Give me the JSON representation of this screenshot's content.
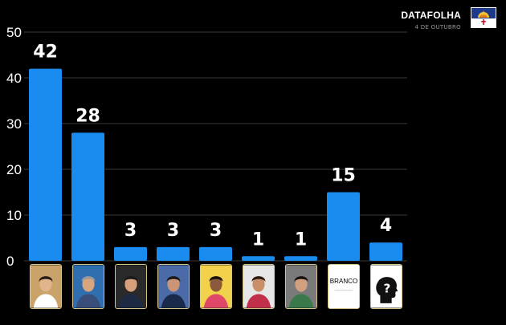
{
  "header": {
    "brand": "DATAFOLHA",
    "date": "4 DE OUTUBRO"
  },
  "flag_icon": "pernambuco-flag",
  "colors": {
    "background": "#000000",
    "bar": "#1a8cf0",
    "grid": "#3a3a3a",
    "text": "#ffffff"
  },
  "chart_data": {
    "type": "bar",
    "categories": [
      "candidate-1",
      "candidate-2",
      "candidate-3",
      "candidate-4",
      "candidate-5",
      "candidate-6",
      "candidate-7",
      "BRANCO",
      "?"
    ],
    "values": [
      42,
      28,
      3,
      3,
      3,
      1,
      1,
      15,
      4
    ],
    "data_labels": [
      "42",
      "28",
      "3",
      "3",
      "3",
      "1",
      "1",
      "15",
      "4"
    ],
    "yticks": [
      "0",
      "10",
      "20",
      "30",
      "40",
      "50"
    ],
    "ylim": [
      0,
      50
    ],
    "grid": true,
    "title": "",
    "xlabel": "",
    "ylabel": ""
  },
  "thumbnails": [
    {
      "kind": "photo",
      "icon": "candidate-photo-icon",
      "bg": "#c9a36a",
      "skin": "#e2b48c",
      "hair": "#2a2018",
      "shirt": "#ffffff"
    },
    {
      "kind": "photo",
      "icon": "candidate-photo-icon",
      "bg": "#2f6fb0",
      "skin": "#d9a57e",
      "hair": "#9a9a9a",
      "shirt": "#3a4e7a"
    },
    {
      "kind": "photo",
      "icon": "candidate-photo-icon",
      "bg": "#2a2a2a",
      "skin": "#d7a07a",
      "hair": "#1a1a1a",
      "shirt": "#1e2a44"
    },
    {
      "kind": "photo",
      "icon": "candidate-photo-icon",
      "bg": "#4a6aa8",
      "skin": "#c99576",
      "hair": "#1a1a1a",
      "shirt": "#1a2a4a"
    },
    {
      "kind": "photo",
      "icon": "candidate-photo-icon",
      "bg": "#f2d24a",
      "skin": "#8a5a3a",
      "hair": "#1a1008",
      "shirt": "#e0486a"
    },
    {
      "kind": "photo",
      "icon": "candidate-photo-icon",
      "bg": "#e6e6e6",
      "skin": "#c98f68",
      "hair": "#2a1a10",
      "shirt": "#c03048"
    },
    {
      "kind": "photo",
      "icon": "candidate-photo-icon",
      "bg": "#7a7a7a",
      "skin": "#d0a080",
      "hair": "#1a1410",
      "shirt": "#3a7a4a"
    },
    {
      "kind": "text",
      "icon": "blank-vote-icon",
      "text": "BRANCO"
    },
    {
      "kind": "question",
      "icon": "question-head-icon"
    }
  ]
}
